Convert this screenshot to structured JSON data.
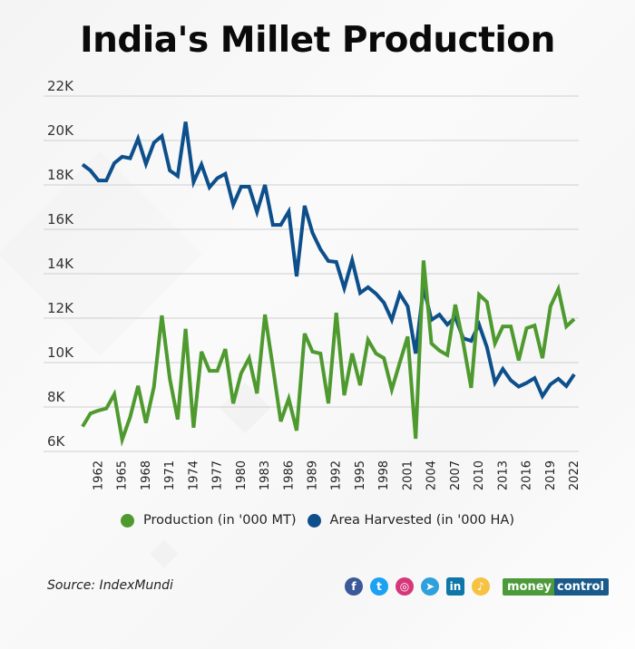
{
  "title": "India's Millet Production",
  "source": "Source: IndexMundi",
  "legend": [
    {
      "label": "Production (in '000 MT)",
      "color": "#4e9a2f"
    },
    {
      "label": "Area Harvested (in '000 HA)",
      "color": "#0d4f8b"
    }
  ],
  "social_icons": [
    {
      "name": "facebook-icon",
      "glyph": "f",
      "color": "#3b5998"
    },
    {
      "name": "twitter-icon",
      "glyph": "t",
      "color": "#1da1f2"
    },
    {
      "name": "instagram-icon",
      "glyph": "◎",
      "color": "#d6377a"
    },
    {
      "name": "telegram-icon",
      "glyph": "➤",
      "color": "#2ea0dc"
    },
    {
      "name": "linkedin-icon",
      "glyph": "in",
      "color": "#0e76a8"
    },
    {
      "name": "koo-icon",
      "glyph": "♪",
      "color": "#f5c242"
    }
  ],
  "brand": {
    "part1": "money",
    "part2": "control"
  },
  "chart_data": {
    "type": "line",
    "title": "India's Millet Production",
    "xlabel": "",
    "ylabel": "",
    "ylim": [
      6000,
      22000
    ],
    "yticks": [
      6000,
      8000,
      10000,
      12000,
      14000,
      16000,
      18000,
      20000,
      22000
    ],
    "ytick_labels": [
      "6K",
      "8K",
      "10K",
      "12K",
      "14K",
      "16K",
      "18K",
      "20K",
      "22K"
    ],
    "xlim": [
      1960,
      2022
    ],
    "xticks": [
      1962,
      1965,
      1968,
      1971,
      1974,
      1977,
      1980,
      1983,
      1986,
      1989,
      1992,
      1995,
      1998,
      2001,
      2004,
      2007,
      2010,
      2013,
      2016,
      2019,
      2022
    ],
    "grid": "horizontal",
    "legend_position": "bottom",
    "x": [
      1960,
      1961,
      1962,
      1963,
      1964,
      1965,
      1966,
      1967,
      1968,
      1969,
      1970,
      1971,
      1972,
      1973,
      1974,
      1975,
      1976,
      1977,
      1978,
      1979,
      1980,
      1981,
      1982,
      1983,
      1984,
      1985,
      1986,
      1987,
      1988,
      1989,
      1990,
      1991,
      1992,
      1993,
      1994,
      1995,
      1996,
      1997,
      1998,
      1999,
      2000,
      2001,
      2002,
      2003,
      2004,
      2005,
      2006,
      2007,
      2008,
      2009,
      2010,
      2011,
      2012,
      2013,
      2014,
      2015,
      2016,
      2017,
      2018,
      2019,
      2020,
      2021,
      2022
    ],
    "series": [
      {
        "name": "Production (in '000 MT)",
        "color": "#4e9a2f",
        "values": [
          7120,
          7710,
          7840,
          7930,
          8570,
          6530,
          7550,
          8950,
          7280,
          8910,
          12120,
          9270,
          7440,
          11520,
          7070,
          10490,
          9630,
          9630,
          10610,
          8160,
          9520,
          10200,
          8610,
          12160,
          9800,
          7350,
          8370,
          6940,
          11300,
          10490,
          10410,
          8160,
          12240,
          8530,
          10410,
          8980,
          11020,
          10410,
          10200,
          8780,
          10000,
          11170,
          6570,
          14600,
          10860,
          10540,
          10340,
          12610,
          10900,
          8860,
          13060,
          12730,
          10860,
          11630,
          11630,
          10100,
          11550,
          11670,
          10200,
          12530,
          13300,
          11630,
          11960
        ]
      },
      {
        "name": "Area Harvested (in '000 HA)",
        "color": "#0d4f8b",
        "values": [
          18920,
          18650,
          18200,
          18200,
          18980,
          19270,
          19200,
          20080,
          18940,
          19900,
          20200,
          18650,
          18400,
          20840,
          18130,
          18920,
          17890,
          18300,
          18500,
          17100,
          17920,
          17920,
          16780,
          18000,
          16200,
          16200,
          16800,
          13880,
          17060,
          15840,
          15100,
          14570,
          14530,
          13350,
          14610,
          13140,
          13390,
          13100,
          12700,
          11920,
          13100,
          12530,
          10410,
          13390,
          11920,
          12160,
          11710,
          12040,
          11100,
          10980,
          11710,
          10690,
          9100,
          9710,
          9200,
          8920,
          9080,
          9300,
          8490,
          9020,
          9270,
          8940,
          9470
        ]
      }
    ]
  }
}
